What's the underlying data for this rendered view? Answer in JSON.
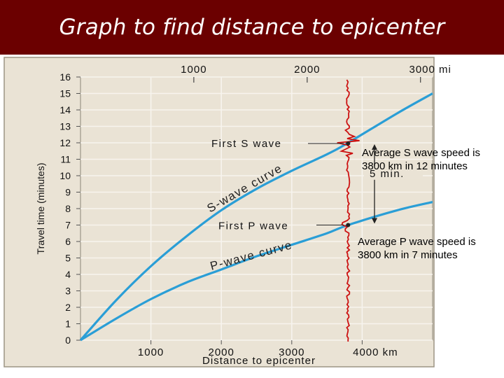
{
  "page": {
    "title": "Graph to find distance to epicenter",
    "colors": {
      "title_bar": "#6b0000",
      "plot_bg": "#eae3d5",
      "curve": "#2a9ed6",
      "seismogram": "#cc1111"
    }
  },
  "notes": {
    "s_speed_line1": "Average S wave speed is",
    "s_speed_line2": "3800 km in 12 minutes",
    "p_speed_line1": "Average P wave speed is",
    "p_speed_line2": "3800 km in 7 minutes"
  },
  "chart_data": {
    "type": "line",
    "title": "",
    "xlabel": "Distance to epicenter",
    "ylabel": "Travel time (minutes)",
    "xlim": [
      0,
      5000
    ],
    "ylim": [
      0,
      16
    ],
    "x_ticks": [
      {
        "value": 1000,
        "label": "1000"
      },
      {
        "value": 2000,
        "label": "2000"
      },
      {
        "value": 3000,
        "label": "3000"
      },
      {
        "value": 4000,
        "label": "4000 km"
      }
    ],
    "y_ticks": [
      0,
      1,
      2,
      3,
      4,
      5,
      6,
      7,
      8,
      9,
      10,
      11,
      12,
      13,
      14,
      15,
      16
    ],
    "top_axis_ticks": [
      {
        "value": 1609,
        "label": "1000"
      },
      {
        "value": 3219,
        "label": "2000"
      },
      {
        "value": 4828,
        "label": "3000 mi"
      }
    ],
    "series": [
      {
        "name": "S-wave curve",
        "x": [
          0,
          500,
          1000,
          1500,
          2000,
          2500,
          3000,
          3500,
          3800,
          4500,
          5000
        ],
        "y": [
          0,
          2.4,
          4.5,
          6.3,
          7.9,
          9.2,
          10.3,
          11.3,
          12.0,
          13.8,
          15.0
        ]
      },
      {
        "name": "P-wave curve",
        "x": [
          0,
          500,
          1000,
          1500,
          2000,
          2500,
          3000,
          3500,
          3800,
          4500,
          5000
        ],
        "y": [
          0,
          1.3,
          2.5,
          3.5,
          4.3,
          5.1,
          5.8,
          6.5,
          7.0,
          7.9,
          8.4
        ]
      }
    ],
    "annotations": [
      {
        "text": "First S wave",
        "x": 3800,
        "y": 12
      },
      {
        "text": "First P wave",
        "x": 3800,
        "y": 7
      },
      {
        "text": "5 min.",
        "between": [
          7,
          12
        ]
      }
    ],
    "seismogram_distance": 3800,
    "grid": true
  }
}
